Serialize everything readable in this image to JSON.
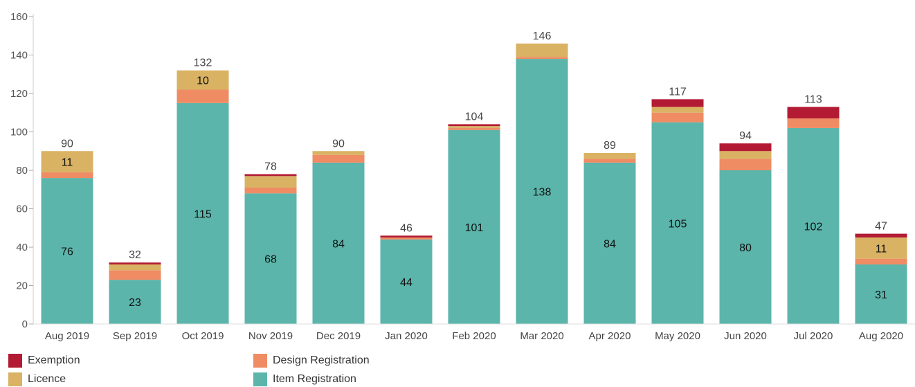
{
  "chart_data": {
    "type": "bar",
    "stacked": true,
    "categories": [
      "Aug 2019",
      "Sep 2019",
      "Oct 2019",
      "Nov 2019",
      "Dec 2019",
      "Jan 2020",
      "Feb 2020",
      "Mar 2020",
      "Apr 2020",
      "May 2020",
      "Jun 2020",
      "Jul 2020",
      "Aug 2020"
    ],
    "series": [
      {
        "name": "Item Registration",
        "color": "#5bb5ab",
        "values": [
          76,
          23,
          115,
          68,
          84,
          44,
          101,
          138,
          84,
          105,
          80,
          102,
          31
        ]
      },
      {
        "name": "Design Registration",
        "color": "#ef8c64",
        "values": [
          3,
          5,
          7,
          3,
          4,
          1,
          1,
          1,
          2,
          5,
          6,
          5,
          3
        ]
      },
      {
        "name": "Licence",
        "color": "#d9b263",
        "values": [
          11,
          3,
          10,
          6,
          2,
          0,
          1,
          7,
          3,
          3,
          4,
          0,
          11
        ]
      },
      {
        "name": "Exemption",
        "color": "#b31b34",
        "values": [
          0,
          1,
          0,
          1,
          0,
          1,
          1,
          0,
          0,
          4,
          4,
          6,
          2
        ]
      }
    ],
    "totals": [
      90,
      32,
      132,
      78,
      90,
      46,
      104,
      146,
      89,
      117,
      94,
      113,
      47
    ],
    "segment_labels": [
      {
        "index": 0,
        "series": 0,
        "text": "76"
      },
      {
        "index": 0,
        "series": 2,
        "text": "11"
      },
      {
        "index": 1,
        "series": 0,
        "text": "23"
      },
      {
        "index": 2,
        "series": 0,
        "text": "115"
      },
      {
        "index": 2,
        "series": 2,
        "text": "10"
      },
      {
        "index": 3,
        "series": 0,
        "text": "68"
      },
      {
        "index": 4,
        "series": 0,
        "text": "84"
      },
      {
        "index": 5,
        "series": 0,
        "text": "44"
      },
      {
        "index": 6,
        "series": 0,
        "text": "101"
      },
      {
        "index": 7,
        "series": 0,
        "text": "138"
      },
      {
        "index": 8,
        "series": 0,
        "text": "84"
      },
      {
        "index": 9,
        "series": 0,
        "text": "105"
      },
      {
        "index": 10,
        "series": 0,
        "text": "80"
      },
      {
        "index": 11,
        "series": 0,
        "text": "102"
      },
      {
        "index": 12,
        "series": 0,
        "text": "31"
      },
      {
        "index": 12,
        "series": 2,
        "text": "11"
      }
    ],
    "yticks": [
      0,
      20,
      40,
      60,
      80,
      100,
      120,
      140,
      160
    ],
    "ylim": [
      0,
      160
    ],
    "title": "",
    "xlabel": "",
    "ylabel": "",
    "grid": false,
    "legend_position": "bottom-left",
    "legend_order": [
      "Exemption",
      "Design Registration",
      "Licence",
      "Item Registration"
    ]
  }
}
